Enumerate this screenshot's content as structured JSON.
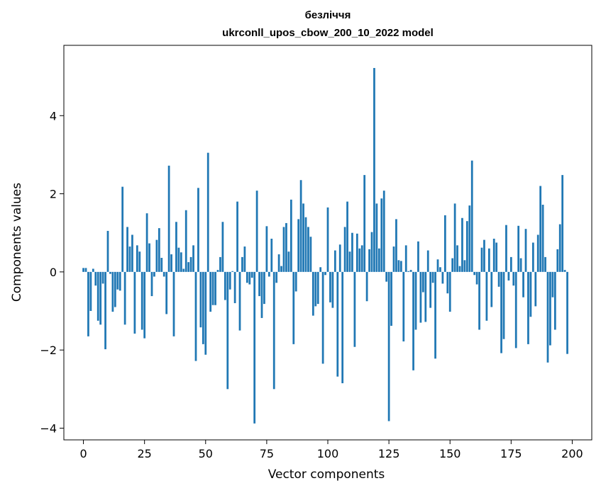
{
  "chart_data": {
    "type": "bar",
    "title": "безліччя",
    "subtitle": "ukrconll_upos_cbow_200_10_2022 model",
    "xlabel": "Vector components",
    "ylabel": "Components values",
    "xlim": [
      -8,
      208
    ],
    "ylim": [
      -4.3,
      5.8
    ],
    "xticks": [
      0,
      25,
      50,
      75,
      100,
      125,
      150,
      175,
      200
    ],
    "yticks": [
      -4,
      -2,
      0,
      2,
      4
    ],
    "ytick_labels": [
      "−4",
      "−2",
      "0",
      "2",
      "4"
    ],
    "grid": false,
    "bar_color": "#1f77b4",
    "values": [
      0.1,
      0.1,
      -1.65,
      -1.0,
      0.08,
      -0.35,
      -1.25,
      -1.35,
      -0.3,
      -1.98,
      1.05,
      -0.05,
      -1.02,
      -0.9,
      -0.45,
      -0.48,
      2.18,
      -1.35,
      1.15,
      0.65,
      0.95,
      -1.58,
      0.68,
      0.52,
      -1.48,
      -1.7,
      1.5,
      0.73,
      -0.62,
      -0.12,
      0.82,
      1.12,
      0.36,
      -0.12,
      -1.08,
      2.72,
      0.45,
      -1.65,
      1.28,
      0.62,
      0.5,
      0.08,
      1.58,
      0.25,
      0.38,
      0.68,
      -2.28,
      2.15,
      -1.42,
      -1.85,
      -2.12,
      3.05,
      -1.02,
      -0.85,
      -0.85,
      0.05,
      0.38,
      1.28,
      -0.72,
      -3.0,
      -0.45,
      0.02,
      -0.8,
      1.8,
      -1.5,
      0.38,
      0.65,
      -0.28,
      -0.32,
      -0.15,
      -3.88,
      2.08,
      -0.62,
      -1.18,
      -0.82,
      1.17,
      -0.12,
      0.85,
      -3.0,
      -0.28,
      0.45,
      0.15,
      1.15,
      1.25,
      0.52,
      1.85,
      -1.85,
      -0.5,
      1.35,
      2.35,
      1.75,
      1.4,
      1.15,
      0.9,
      -1.12,
      -0.88,
      -0.82,
      0.12,
      -2.35,
      -0.08,
      1.65,
      -0.78,
      -0.92,
      0.55,
      -2.68,
      0.7,
      -2.85,
      1.15,
      1.8,
      0.52,
      1.0,
      -1.92,
      0.98,
      0.6,
      0.68,
      2.48,
      -0.75,
      0.58,
      1.02,
      5.22,
      1.75,
      0.6,
      1.88,
      2.08,
      -0.25,
      -3.82,
      -1.38,
      0.65,
      1.35,
      0.3,
      0.28,
      -1.78,
      0.68,
      0.02,
      0.05,
      -2.52,
      -1.48,
      0.78,
      -1.3,
      -0.52,
      -1.28,
      0.55,
      -0.92,
      -0.28,
      -2.22,
      0.32,
      0.12,
      -0.3,
      1.45,
      -0.55,
      -1.02,
      0.35,
      1.75,
      0.68,
      0.15,
      1.38,
      0.3,
      1.3,
      1.7,
      2.85,
      -0.08,
      -0.32,
      -1.48,
      0.62,
      0.82,
      -1.25,
      0.6,
      -0.9,
      0.85,
      0.75,
      -0.38,
      -2.08,
      -1.72,
      1.2,
      -0.22,
      0.38,
      -0.35,
      -1.95,
      1.18,
      0.35,
      -0.65,
      1.1,
      -1.85,
      -1.15,
      0.75,
      -0.88,
      0.95,
      2.2,
      1.72,
      0.38,
      -2.32,
      -1.88,
      -0.65,
      -1.48,
      0.58,
      1.22,
      2.48,
      0.05,
      -2.1
    ]
  }
}
